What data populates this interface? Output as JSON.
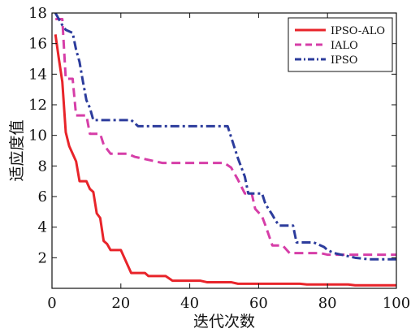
{
  "chart_data": {
    "type": "line",
    "title": "",
    "xlabel": "迭代次数",
    "ylabel": "适应度值",
    "xlim": [
      0,
      100
    ],
    "ylim": [
      0,
      18
    ],
    "xticks": [
      0,
      20,
      40,
      60,
      80,
      100
    ],
    "yticks": [
      2,
      4,
      6,
      8,
      10,
      12,
      14,
      16,
      18
    ],
    "grid": false,
    "legend_position": "top-right",
    "series": [
      {
        "name": "IPSO-ALO",
        "color": "#e8242a",
        "dash": "solid",
        "points": [
          [
            1,
            16.6
          ],
          [
            2,
            15.0
          ],
          [
            3,
            13.5
          ],
          [
            4,
            10.2
          ],
          [
            5,
            9.3
          ],
          [
            6,
            8.8
          ],
          [
            7,
            8.3
          ],
          [
            8,
            7.0
          ],
          [
            10,
            7.0
          ],
          [
            11,
            6.5
          ],
          [
            12,
            6.3
          ],
          [
            13,
            4.9
          ],
          [
            14,
            4.6
          ],
          [
            15,
            3.1
          ],
          [
            16,
            2.9
          ],
          [
            17,
            2.5
          ],
          [
            20,
            2.5
          ],
          [
            22,
            1.5
          ],
          [
            23,
            1.0
          ],
          [
            27,
            1.0
          ],
          [
            28,
            0.8
          ],
          [
            33,
            0.8
          ],
          [
            35,
            0.5
          ],
          [
            43,
            0.5
          ],
          [
            45,
            0.4
          ],
          [
            52,
            0.4
          ],
          [
            54,
            0.3
          ],
          [
            72,
            0.3
          ],
          [
            74,
            0.25
          ],
          [
            86,
            0.25
          ],
          [
            88,
            0.2
          ],
          [
            100,
            0.2
          ]
        ]
      },
      {
        "name": "IALO",
        "color": "#d63ea8",
        "dash": "dash",
        "points": [
          [
            1,
            17.6
          ],
          [
            3,
            17.6
          ],
          [
            4,
            13.7
          ],
          [
            6,
            13.7
          ],
          [
            7,
            11.3
          ],
          [
            10,
            11.3
          ],
          [
            11,
            10.1
          ],
          [
            14,
            10.1
          ],
          [
            15,
            9.4
          ],
          [
            17,
            8.8
          ],
          [
            22,
            8.8
          ],
          [
            24,
            8.6
          ],
          [
            28,
            8.4
          ],
          [
            32,
            8.2
          ],
          [
            50,
            8.2
          ],
          [
            52,
            7.9
          ],
          [
            54,
            7.1
          ],
          [
            56,
            6.2
          ],
          [
            58,
            6.2
          ],
          [
            59,
            5.2
          ],
          [
            61,
            4.7
          ],
          [
            62,
            4.1
          ],
          [
            64,
            2.8
          ],
          [
            67,
            2.8
          ],
          [
            69,
            2.3
          ],
          [
            78,
            2.3
          ],
          [
            80,
            2.2
          ],
          [
            100,
            2.2
          ]
        ]
      },
      {
        "name": "IPSO",
        "color": "#2c3c9c",
        "dash": "dashdot",
        "points": [
          [
            1,
            18.0
          ],
          [
            3,
            17.2
          ],
          [
            4,
            16.9
          ],
          [
            6,
            16.7
          ],
          [
            7,
            15.6
          ],
          [
            8,
            14.8
          ],
          [
            9,
            13.5
          ],
          [
            10,
            12.3
          ],
          [
            11,
            11.8
          ],
          [
            12,
            11.0
          ],
          [
            23,
            11.0
          ],
          [
            25,
            10.6
          ],
          [
            51,
            10.6
          ],
          [
            53,
            9.2
          ],
          [
            54,
            8.5
          ],
          [
            55,
            7.9
          ],
          [
            56,
            7.3
          ],
          [
            57,
            6.2
          ],
          [
            61,
            6.2
          ],
          [
            62,
            5.5
          ],
          [
            64,
            4.8
          ],
          [
            65,
            4.4
          ],
          [
            66,
            4.1
          ],
          [
            70,
            4.1
          ],
          [
            71,
            3.0
          ],
          [
            76,
            3.0
          ],
          [
            77,
            2.9
          ],
          [
            79,
            2.7
          ],
          [
            80,
            2.5
          ],
          [
            82,
            2.3
          ],
          [
            84,
            2.2
          ],
          [
            86,
            2.1
          ],
          [
            88,
            2.0
          ],
          [
            90,
            1.95
          ],
          [
            92,
            1.9
          ],
          [
            100,
            1.9
          ]
        ]
      }
    ]
  }
}
